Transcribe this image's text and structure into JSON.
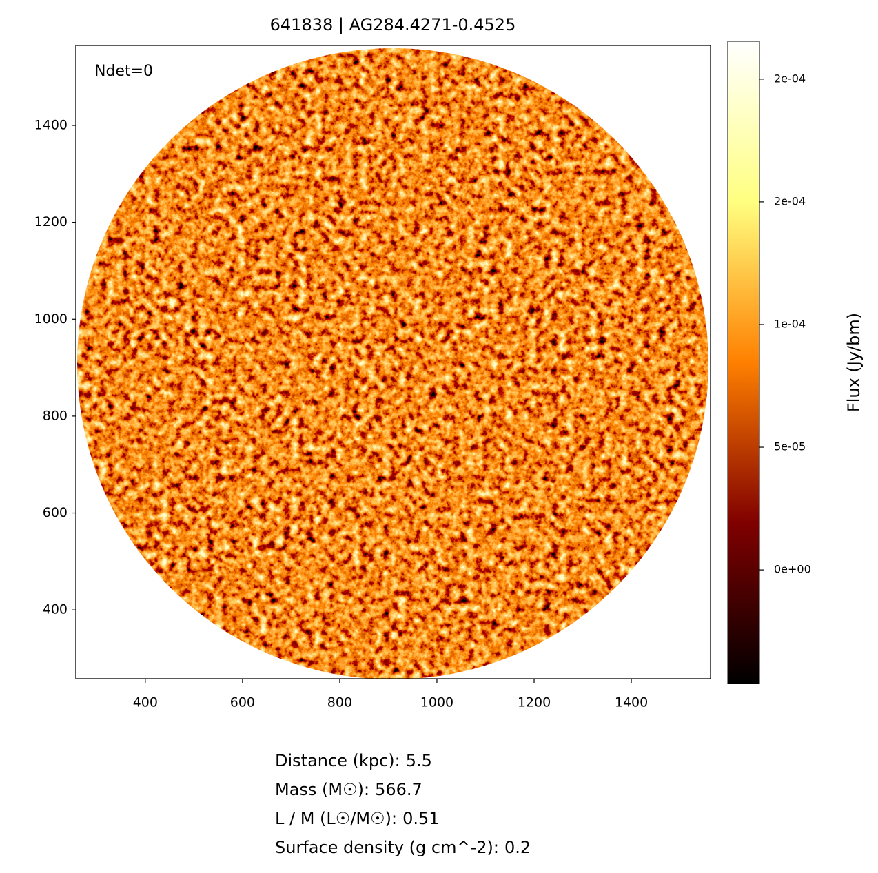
{
  "chart_data": {
    "type": "image",
    "title": "641838 | AG284.4271-0.4525",
    "annotation": "Ndet=0",
    "colormap": "afmhot",
    "xlim": [
      257,
      1563
    ],
    "xticks": [
      400,
      600,
      800,
      1000,
      1200,
      1400
    ],
    "ylim": [
      258,
      1565
    ],
    "yticks": [
      400,
      600,
      800,
      1000,
      1200,
      1400
    ],
    "colorbar": {
      "label": "Flux (Jy/bm)",
      "clim": [
        -4.63e-05,
        0.0002154
      ],
      "ticks": [
        {
          "value": 0,
          "label": "0e+00"
        },
        {
          "value": 5e-05,
          "label": "5e-05"
        },
        {
          "value": 0.0001,
          "label": "1e-04"
        },
        {
          "value": 0.00015,
          "label": "2e-04"
        },
        {
          "value": 0.0002,
          "label": "2e-04"
        }
      ]
    },
    "info": [
      {
        "label": "Distance (kpc):",
        "value": 5.5
      },
      {
        "label": "Mass (M☉):",
        "value": 566.7
      },
      {
        "label": "L / M (L☉/M☉):",
        "value": 0.51
      },
      {
        "label": "Surface density (g cm^-2):",
        "value": 0.2
      }
    ]
  }
}
